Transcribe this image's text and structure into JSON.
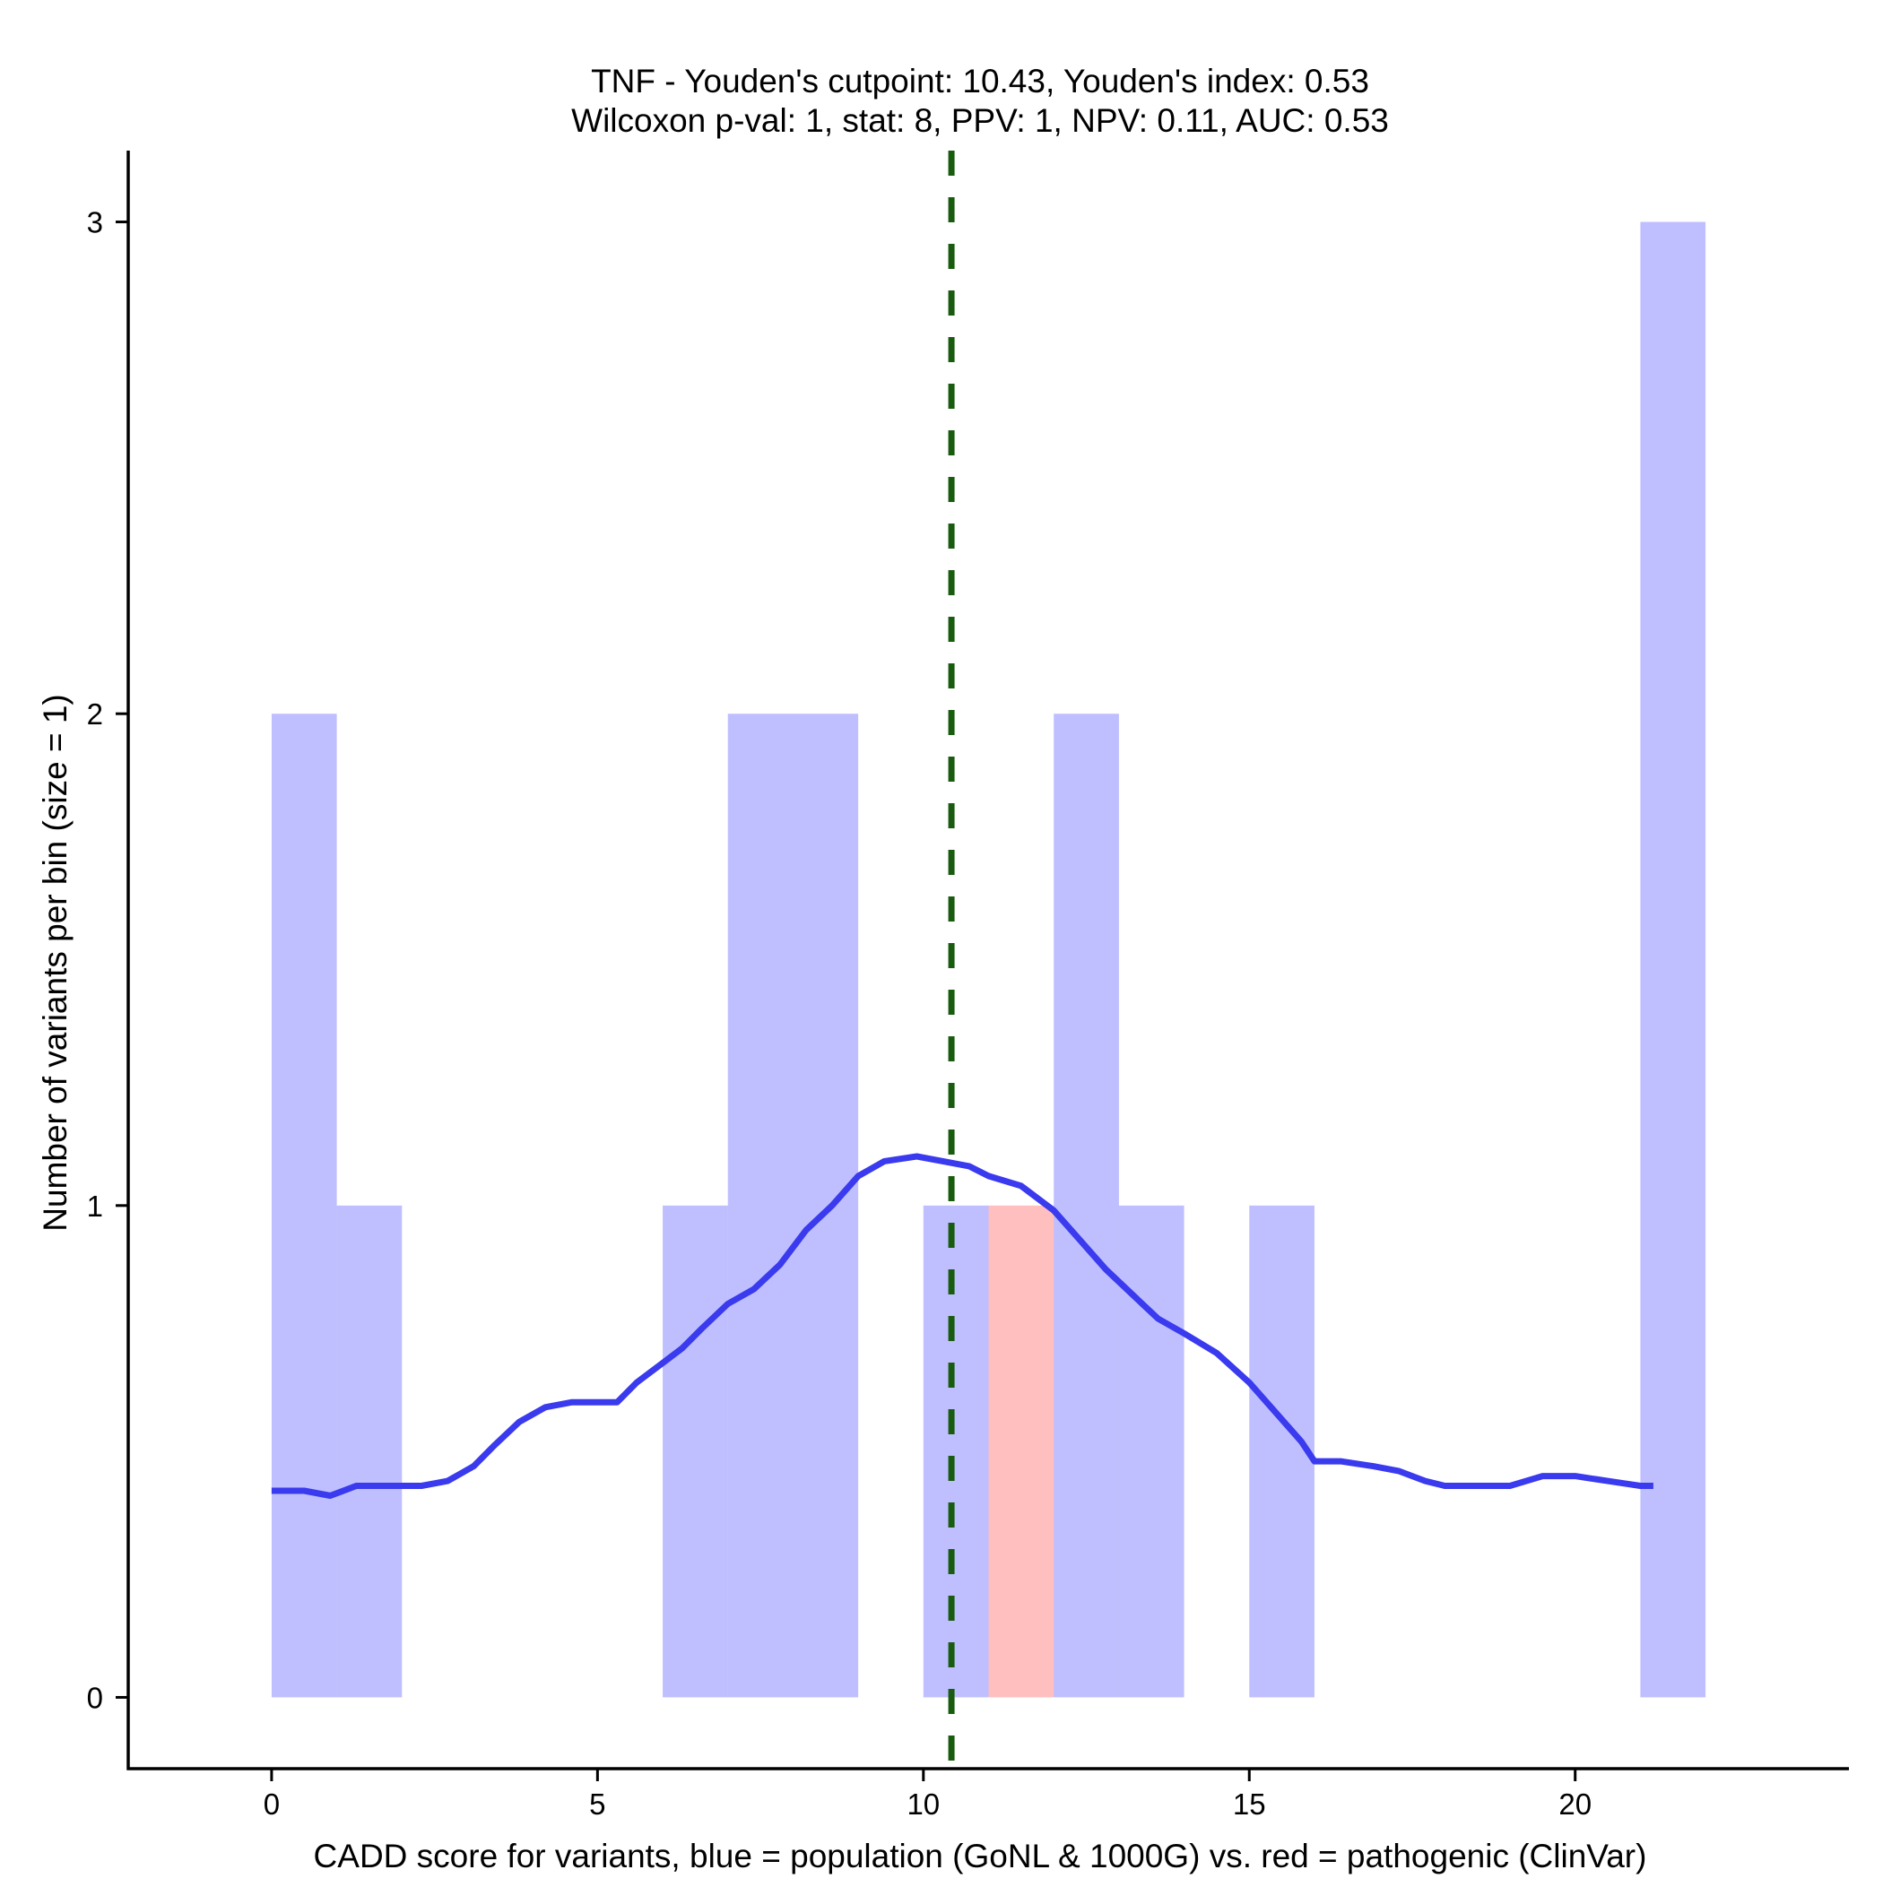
{
  "chart_data": {
    "type": "histogram",
    "title_lines": [
      "TNF - Youden's cutpoint: 10.43, Youden's index: 0.53",
      "Wilcoxon p-val: 1, stat: 8, PPV: 1, NPV: 0.11, AUC: 0.53"
    ],
    "xlabel": "CADD score for variants, blue = population (GoNL & 1000G) vs. red = pathogenic (ClinVar)",
    "ylabel": "Number of variants per bin (size = 1)",
    "xlim": [
      -2.2,
      24.2
    ],
    "ylim": [
      -0.145,
      3.145
    ],
    "x_ticks": [
      0,
      5,
      10,
      15,
      20
    ],
    "y_ticks": [
      0,
      1,
      2,
      3
    ],
    "bin_size": 1,
    "series": [
      {
        "name": "population (GoNL & 1000G)",
        "color": "#0000ff",
        "opacity": 0.25,
        "bins": [
          {
            "x0": 0,
            "x1": 1,
            "count": 2
          },
          {
            "x0": 1,
            "x1": 2,
            "count": 1
          },
          {
            "x0": 6,
            "x1": 7,
            "count": 1
          },
          {
            "x0": 7,
            "x1": 8,
            "count": 2
          },
          {
            "x0": 8,
            "x1": 9,
            "count": 2
          },
          {
            "x0": 10,
            "x1": 11,
            "count": 1
          },
          {
            "x0": 12,
            "x1": 13,
            "count": 2
          },
          {
            "x0": 13,
            "x1": 14,
            "count": 1
          },
          {
            "x0": 15,
            "x1": 16,
            "count": 1
          },
          {
            "x0": 21,
            "x1": 22,
            "count": 3
          }
        ]
      },
      {
        "name": "pathogenic (ClinVar)",
        "color": "#ff0000",
        "opacity": 0.25,
        "bins": [
          {
            "x0": 11,
            "x1": 12,
            "count": 1
          }
        ]
      }
    ],
    "density_curve": {
      "name": "population density",
      "color": "#3a3aee",
      "x": [
        0,
        0.5,
        0.9,
        1.3,
        1.8,
        2.3,
        2.7,
        3.1,
        3.4,
        3.8,
        4.2,
        4.6,
        5.0,
        5.3,
        5.6,
        6.0,
        6.3,
        6.6,
        7.0,
        7.4,
        7.8,
        8.2,
        8.6,
        9.0,
        9.4,
        9.9,
        10.3,
        10.7,
        11.0,
        11.5,
        12.0,
        12.4,
        12.8,
        13.2,
        13.6,
        14.0,
        14.5,
        15.0,
        15.4,
        15.8,
        16.0,
        16.4,
        16.9,
        17.3,
        17.7,
        18.0,
        18.5,
        19.0,
        19.5,
        20.0,
        20.5,
        21.0,
        21.2
      ],
      "y": [
        0.42,
        0.42,
        0.41,
        0.43,
        0.43,
        0.43,
        0.44,
        0.47,
        0.51,
        0.56,
        0.59,
        0.6,
        0.6,
        0.6,
        0.64,
        0.68,
        0.71,
        0.75,
        0.8,
        0.83,
        0.88,
        0.95,
        1.0,
        1.06,
        1.09,
        1.1,
        1.09,
        1.08,
        1.06,
        1.04,
        0.99,
        0.93,
        0.87,
        0.82,
        0.77,
        0.74,
        0.7,
        0.64,
        0.58,
        0.52,
        0.48,
        0.48,
        0.47,
        0.46,
        0.44,
        0.43,
        0.43,
        0.43,
        0.45,
        0.45,
        0.44,
        0.43,
        0.43
      ]
    },
    "cutpoint": {
      "label": "Youden's cutpoint",
      "value": 10.43,
      "color": "#1a5c0f"
    }
  }
}
